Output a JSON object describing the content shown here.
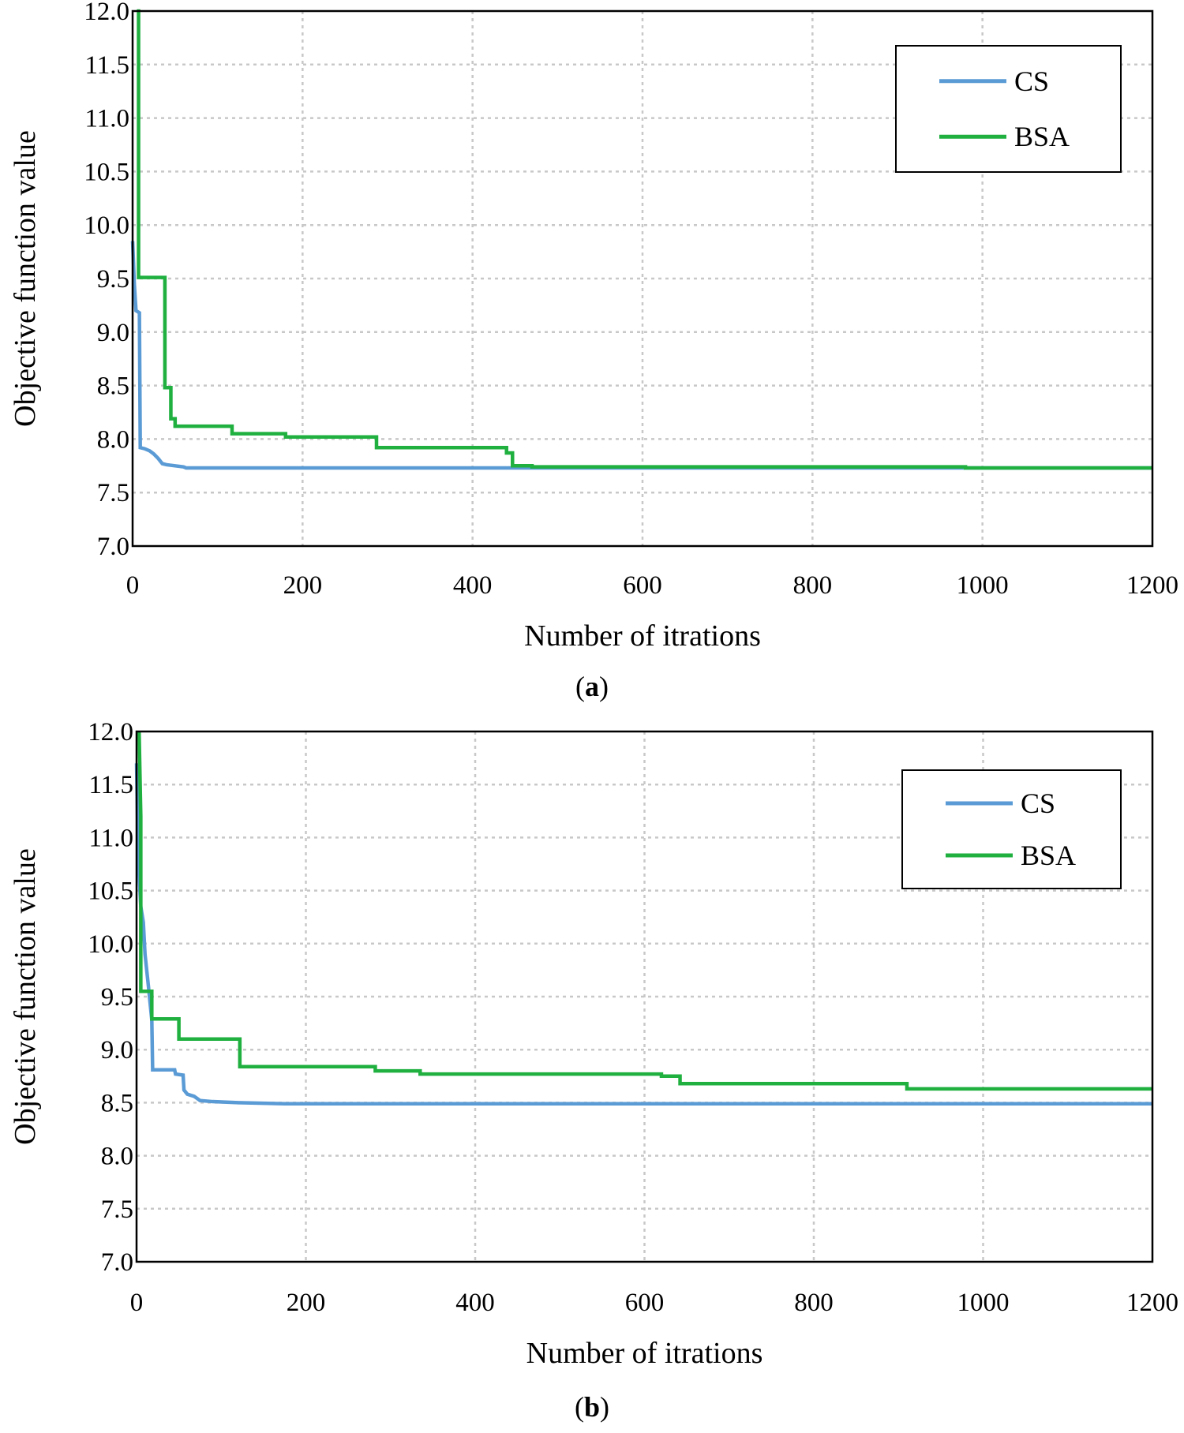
{
  "chart_data": [
    {
      "type": "line",
      "caption": {
        "open": "(",
        "letter": "a",
        "close": ")"
      },
      "xlabel": "Number of itrations",
      "ylabel": "Objective function value",
      "xlim": [
        0,
        1200
      ],
      "ylim": [
        7.0,
        12.0
      ],
      "x_ticks": [
        "0",
        "200",
        "400",
        "600",
        "800",
        "1000",
        "1200"
      ],
      "y_ticks": [
        "7.0",
        "7.5",
        "8.0",
        "8.5",
        "9.0",
        "9.5",
        "10.0",
        "10.5",
        "11.0",
        "11.5",
        "12.0"
      ],
      "grid": true,
      "legend_position": "top-right",
      "series": [
        {
          "name": "CS",
          "color": "#5b9bd5",
          "points": [
            [
              0,
              9.85
            ],
            [
              2,
              9.45
            ],
            [
              4,
              9.2
            ],
            [
              8,
              9.18
            ],
            [
              9,
              7.92
            ],
            [
              14,
              7.91
            ],
            [
              20,
              7.89
            ],
            [
              25,
              7.86
            ],
            [
              30,
              7.82
            ],
            [
              35,
              7.77
            ],
            [
              40,
              7.76
            ],
            [
              50,
              7.75
            ],
            [
              60,
              7.74
            ],
            [
              63,
              7.73
            ],
            [
              1200,
              7.73
            ]
          ]
        },
        {
          "name": "BSA",
          "color": "#1fb040",
          "points": [
            [
              5,
              12.0
            ],
            [
              7,
              12.0
            ],
            [
              7,
              9.51
            ],
            [
              38,
              9.51
            ],
            [
              38,
              8.48
            ],
            [
              45,
              8.48
            ],
            [
              45,
              8.19
            ],
            [
              50,
              8.19
            ],
            [
              50,
              8.12
            ],
            [
              117,
              8.12
            ],
            [
              117,
              8.05
            ],
            [
              180,
              8.05
            ],
            [
              180,
              8.02
            ],
            [
              287,
              8.02
            ],
            [
              287,
              7.92
            ],
            [
              440,
              7.92
            ],
            [
              440,
              7.87
            ],
            [
              447,
              7.87
            ],
            [
              447,
              7.75
            ],
            [
              470,
              7.75
            ],
            [
              470,
              7.74
            ],
            [
              980,
              7.74
            ],
            [
              980,
              7.73
            ],
            [
              1200,
              7.73
            ]
          ]
        }
      ]
    },
    {
      "type": "line",
      "caption": {
        "open": "(",
        "letter": "b",
        "close": ")"
      },
      "xlabel": "Number of itrations",
      "ylabel": "Objective function value",
      "xlim": [
        0,
        1200
      ],
      "ylim": [
        7.0,
        12.0
      ],
      "x_ticks": [
        "0",
        "200",
        "400",
        "600",
        "800",
        "1000",
        "1200"
      ],
      "y_ticks": [
        "7.0",
        "7.5",
        "8.0",
        "8.5",
        "9.0",
        "9.5",
        "10.0",
        "10.5",
        "11.0",
        "11.5",
        "12.0"
      ],
      "grid": true,
      "legend_position": "top-right",
      "series": [
        {
          "name": "CS",
          "color": "#5b9bd5",
          "points": [
            [
              0,
              11.7
            ],
            [
              2,
              10.8
            ],
            [
              5,
              10.35
            ],
            [
              8,
              10.2
            ],
            [
              10,
              9.9
            ],
            [
              14,
              9.6
            ],
            [
              18,
              9.28
            ],
            [
              19,
              8.81
            ],
            [
              45,
              8.81
            ],
            [
              46,
              8.77
            ],
            [
              55,
              8.76
            ],
            [
              56,
              8.62
            ],
            [
              60,
              8.58
            ],
            [
              68,
              8.56
            ],
            [
              75,
              8.52
            ],
            [
              90,
              8.51
            ],
            [
              120,
              8.5
            ],
            [
              175,
              8.49
            ],
            [
              1200,
              8.49
            ]
          ]
        },
        {
          "name": "BSA",
          "color": "#1fb040",
          "points": [
            [
              3,
              12.0
            ],
            [
              5,
              11.2
            ],
            [
              5,
              9.55
            ],
            [
              18,
              9.55
            ],
            [
              18,
              9.29
            ],
            [
              50,
              9.29
            ],
            [
              50,
              9.1
            ],
            [
              122,
              9.1
            ],
            [
              122,
              8.84
            ],
            [
              282,
              8.84
            ],
            [
              282,
              8.8
            ],
            [
              335,
              8.8
            ],
            [
              335,
              8.77
            ],
            [
              620,
              8.77
            ],
            [
              620,
              8.75
            ],
            [
              642,
              8.75
            ],
            [
              642,
              8.68
            ],
            [
              910,
              8.68
            ],
            [
              910,
              8.63
            ],
            [
              1200,
              8.63
            ]
          ]
        }
      ]
    }
  ]
}
